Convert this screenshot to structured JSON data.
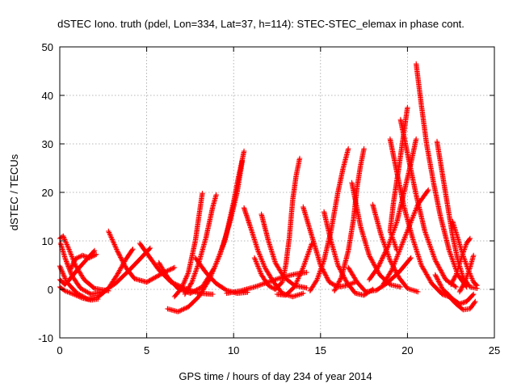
{
  "chart_data": {
    "type": "scatter",
    "title": "dSTEC Iono. truth (pdel, Lon=334, Lat=37, h=114): STEC-STEC_elemax in phase cont.",
    "xlabel": "GPS time / hours of day 234 of year 2014",
    "ylabel": "dSTEC  / TECUs",
    "xlim": [
      0,
      25
    ],
    "ylim": [
      -10,
      50
    ],
    "xticks": [
      0,
      5,
      10,
      15,
      20,
      25
    ],
    "yticks": [
      -10,
      0,
      10,
      20,
      30,
      40,
      50
    ],
    "grid": true,
    "marker": "plus",
    "color": "#ff0000",
    "series": [
      {
        "points": [
          [
            0.0,
            4.8
          ],
          [
            0.4,
            1.5
          ],
          [
            1.0,
            -0.8
          ],
          [
            1.6,
            -2.0
          ],
          [
            2.2,
            -1.6
          ],
          [
            2.8,
            0.2
          ],
          [
            3.3,
            3.0
          ],
          [
            3.8,
            6.2
          ],
          [
            4.2,
            8.3
          ]
        ]
      },
      {
        "points": [
          [
            0.05,
            9.5
          ],
          [
            0.3,
            6.5
          ],
          [
            0.7,
            2.8
          ],
          [
            1.2,
            0.2
          ],
          [
            1.8,
            -1.0
          ],
          [
            2.5,
            -0.5
          ],
          [
            3.2,
            1.2
          ],
          [
            3.9,
            3.6
          ],
          [
            4.6,
            6.2
          ],
          [
            5.2,
            8.5
          ]
        ]
      },
      {
        "points": [
          [
            0.0,
            10.5
          ],
          [
            0.2,
            11.0
          ],
          [
            0.5,
            8.5
          ],
          [
            0.9,
            5.0
          ],
          [
            1.4,
            2.0
          ],
          [
            2.0,
            0.2
          ],
          [
            2.8,
            -0.3
          ]
        ]
      },
      {
        "points": [
          [
            0.0,
            0.5
          ],
          [
            0.3,
            -0.3
          ],
          [
            0.8,
            -1.0
          ],
          [
            1.3,
            -1.8
          ],
          [
            1.8,
            -2.2
          ],
          [
            2.2,
            -2.0
          ]
        ]
      },
      {
        "points": [
          [
            0.0,
            2.0
          ],
          [
            0.3,
            1.0
          ],
          [
            0.6,
            2.2
          ],
          [
            1.0,
            4.0
          ],
          [
            1.5,
            6.0
          ],
          [
            2.0,
            8.0
          ]
        ]
      },
      {
        "points": [
          [
            0.6,
            4.0
          ],
          [
            0.9,
            6.3
          ],
          [
            1.3,
            7.0
          ],
          [
            1.7,
            6.5
          ],
          [
            2.1,
            7.2
          ]
        ]
      },
      {
        "points": [
          [
            2.8,
            12.0
          ],
          [
            3.3,
            8.0
          ],
          [
            3.8,
            4.5
          ],
          [
            4.3,
            2.2
          ],
          [
            5.0,
            1.5
          ],
          [
            5.5,
            2.5
          ],
          [
            6.0,
            3.5
          ],
          [
            6.6,
            4.5
          ]
        ]
      },
      {
        "points": [
          [
            4.6,
            9.5
          ],
          [
            5.1,
            7.0
          ],
          [
            5.7,
            4.0
          ],
          [
            6.4,
            1.5
          ],
          [
            7.2,
            0.2
          ],
          [
            8.0,
            -0.8
          ],
          [
            8.8,
            -1.0
          ]
        ]
      },
      {
        "points": [
          [
            5.7,
            5.5
          ],
          [
            6.2,
            2.5
          ],
          [
            6.8,
            0.2
          ],
          [
            7.5,
            -0.8
          ],
          [
            8.2,
            0.5
          ],
          [
            8.9,
            4.5
          ],
          [
            9.5,
            10.0
          ],
          [
            10.0,
            18.0
          ],
          [
            10.3,
            23.5
          ],
          [
            10.6,
            28.5
          ]
        ]
      },
      {
        "points": [
          [
            6.2,
            -4.0
          ],
          [
            6.8,
            -4.6
          ],
          [
            7.4,
            -3.6
          ],
          [
            8.0,
            -1.5
          ],
          [
            8.6,
            2.0
          ],
          [
            9.2,
            7.0
          ],
          [
            9.8,
            14.0
          ],
          [
            10.2,
            20.0
          ],
          [
            10.5,
            26.5
          ]
        ]
      },
      {
        "points": [
          [
            6.6,
            -1.5
          ],
          [
            7.0,
            0.2
          ],
          [
            7.4,
            3.5
          ],
          [
            7.8,
            10.0
          ],
          [
            8.0,
            15.0
          ],
          [
            8.2,
            19.8
          ]
        ]
      },
      {
        "points": [
          [
            7.2,
            -1.0
          ],
          [
            7.6,
            1.5
          ],
          [
            8.0,
            5.5
          ],
          [
            8.4,
            10.5
          ],
          [
            8.8,
            17.0
          ],
          [
            9.0,
            19.5
          ]
        ]
      },
      {
        "points": [
          [
            7.8,
            6.5
          ],
          [
            8.4,
            3.5
          ],
          [
            9.0,
            1.2
          ],
          [
            9.6,
            -0.2
          ],
          [
            10.2,
            -0.8
          ],
          [
            10.8,
            -0.6
          ]
        ]
      },
      {
        "points": [
          [
            9.6,
            -0.8
          ],
          [
            10.4,
            -0.3
          ],
          [
            11.2,
            0.5
          ],
          [
            12.0,
            1.5
          ],
          [
            12.8,
            2.5
          ],
          [
            13.6,
            3.2
          ],
          [
            14.2,
            3.5
          ]
        ]
      },
      {
        "points": [
          [
            10.6,
            16.8
          ],
          [
            11.0,
            12.5
          ],
          [
            11.4,
            8.0
          ],
          [
            11.8,
            4.5
          ],
          [
            12.3,
            1.5
          ],
          [
            12.8,
            -0.8
          ],
          [
            13.4,
            -1.5
          ],
          [
            14.0,
            -0.8
          ]
        ]
      },
      {
        "points": [
          [
            11.6,
            15.5
          ],
          [
            12.0,
            10.0
          ],
          [
            12.4,
            5.5
          ],
          [
            12.9,
            2.5
          ],
          [
            13.5,
            0.8
          ],
          [
            14.2,
            0.3
          ]
        ]
      },
      {
        "points": [
          [
            11.2,
            6.5
          ],
          [
            11.6,
            3.0
          ],
          [
            12.0,
            0.8
          ],
          [
            12.4,
            0.0
          ],
          [
            12.8,
            1.5
          ],
          [
            13.0,
            5.0
          ],
          [
            13.2,
            10.5
          ],
          [
            13.4,
            18.5
          ],
          [
            13.6,
            23.5
          ],
          [
            13.8,
            27.0
          ]
        ]
      },
      {
        "points": [
          [
            12.5,
            -1.0
          ],
          [
            13.0,
            -1.2
          ],
          [
            13.5,
            0.5
          ],
          [
            14.0,
            4.5
          ],
          [
            14.5,
            9.5
          ]
        ]
      },
      {
        "points": [
          [
            14.0,
            17.0
          ],
          [
            14.5,
            11.0
          ],
          [
            15.0,
            5.0
          ],
          [
            15.5,
            1.5
          ],
          [
            16.0,
            0.5
          ],
          [
            16.5,
            0.8
          ],
          [
            17.0,
            1.5
          ]
        ]
      },
      {
        "points": [
          [
            14.4,
            -0.3
          ],
          [
            14.8,
            2.0
          ],
          [
            15.2,
            6.0
          ],
          [
            15.6,
            12.0
          ],
          [
            16.0,
            20.0
          ],
          [
            16.3,
            25.0
          ],
          [
            16.6,
            29.0
          ]
        ]
      },
      {
        "points": [
          [
            15.2,
            16.0
          ],
          [
            15.6,
            10.0
          ],
          [
            16.0,
            5.0
          ],
          [
            16.5,
            1.5
          ],
          [
            17.0,
            -0.8
          ],
          [
            17.5,
            -1.2
          ],
          [
            18.0,
            0.0
          ]
        ]
      },
      {
        "points": [
          [
            15.8,
            -0.3
          ],
          [
            16.2,
            2.5
          ],
          [
            16.6,
            8.0
          ],
          [
            16.9,
            14.5
          ],
          [
            17.1,
            21.0
          ],
          [
            17.3,
            25.5
          ],
          [
            17.5,
            29.0
          ]
        ]
      },
      {
        "points": [
          [
            16.6,
            4.5
          ],
          [
            17.1,
            1.5
          ],
          [
            17.6,
            -0.5
          ],
          [
            18.2,
            -0.2
          ],
          [
            18.8,
            1.2
          ],
          [
            19.5,
            3.5
          ],
          [
            20.2,
            6.5
          ]
        ]
      },
      {
        "points": [
          [
            16.8,
            22.0
          ],
          [
            17.3,
            13.0
          ],
          [
            17.8,
            7.0
          ],
          [
            18.4,
            3.0
          ],
          [
            19.0,
            1.0
          ],
          [
            19.6,
            0.5
          ]
        ]
      },
      {
        "points": [
          [
            18.0,
            17.5
          ],
          [
            18.5,
            11.0
          ],
          [
            19.0,
            6.0
          ],
          [
            19.5,
            2.5
          ],
          [
            20.0,
            0.2
          ],
          [
            20.6,
            -0.5
          ]
        ]
      },
      {
        "points": [
          [
            17.8,
            2.0
          ],
          [
            18.3,
            4.5
          ],
          [
            18.9,
            9.0
          ],
          [
            19.4,
            14.0
          ],
          [
            19.8,
            20.0
          ],
          [
            20.2,
            26.0
          ],
          [
            20.5,
            31.0
          ]
        ]
      },
      {
        "points": [
          [
            18.6,
            1.0
          ],
          [
            19.1,
            4.0
          ],
          [
            19.6,
            8.5
          ],
          [
            20.1,
            13.0
          ],
          [
            20.6,
            17.5
          ],
          [
            21.2,
            20.5
          ]
        ]
      },
      {
        "points": [
          [
            19.0,
            31.0
          ],
          [
            19.4,
            24.0
          ],
          [
            19.8,
            17.0
          ],
          [
            20.3,
            10.5
          ],
          [
            20.8,
            5.0
          ],
          [
            21.4,
            1.2
          ],
          [
            22.0,
            -1.0
          ],
          [
            22.4,
            -1.5
          ]
        ]
      },
      {
        "points": [
          [
            19.6,
            35.0
          ],
          [
            20.0,
            28.0
          ],
          [
            20.5,
            19.5
          ],
          [
            21.0,
            12.0
          ],
          [
            21.6,
            6.0
          ],
          [
            22.2,
            2.0
          ],
          [
            22.8,
            0.5
          ]
        ]
      },
      {
        "points": [
          [
            20.0,
            37.5
          ],
          [
            19.5,
            25.0
          ],
          [
            19.2,
            18.0
          ],
          [
            19.0,
            12.0
          ],
          [
            19.4,
            8.0
          ]
        ]
      },
      {
        "points": [
          [
            20.5,
            46.5
          ],
          [
            20.8,
            38.0
          ],
          [
            21.1,
            30.0
          ],
          [
            21.5,
            22.0
          ],
          [
            21.9,
            15.0
          ],
          [
            22.4,
            8.0
          ],
          [
            22.9,
            3.0
          ],
          [
            23.4,
            0.5
          ]
        ]
      },
      {
        "points": [
          [
            21.7,
            30.5
          ],
          [
            22.0,
            24.0
          ],
          [
            22.3,
            17.5
          ],
          [
            22.6,
            11.0
          ],
          [
            22.9,
            6.0
          ],
          [
            23.2,
            2.5
          ],
          [
            23.6,
            0.5
          ],
          [
            24.0,
            0.2
          ]
        ]
      },
      {
        "points": [
          [
            22.6,
            14.0
          ],
          [
            22.9,
            10.5
          ],
          [
            23.2,
            7.0
          ],
          [
            23.5,
            4.0
          ],
          [
            23.8,
            1.5
          ],
          [
            24.0,
            0.8
          ]
        ]
      },
      {
        "points": [
          [
            21.6,
            3.0
          ],
          [
            22.0,
            0.2
          ],
          [
            22.4,
            -1.5
          ],
          [
            22.8,
            -3.0
          ],
          [
            23.2,
            -4.2
          ],
          [
            23.6,
            -4.0
          ],
          [
            23.9,
            -2.5
          ]
        ]
      },
      {
        "points": [
          [
            22.2,
            -0.5
          ],
          [
            22.6,
            -2.0
          ],
          [
            23.0,
            -3.0
          ],
          [
            23.4,
            -2.5
          ],
          [
            23.8,
            -1.0
          ]
        ]
      },
      {
        "points": [
          [
            22.5,
            1.0
          ],
          [
            22.8,
            3.0
          ],
          [
            23.1,
            6.5
          ],
          [
            23.4,
            9.5
          ],
          [
            23.6,
            10.5
          ]
        ]
      },
      {
        "points": [
          [
            23.0,
            -0.5
          ],
          [
            23.3,
            1.5
          ],
          [
            23.6,
            4.5
          ],
          [
            23.8,
            7.0
          ]
        ]
      }
    ]
  }
}
